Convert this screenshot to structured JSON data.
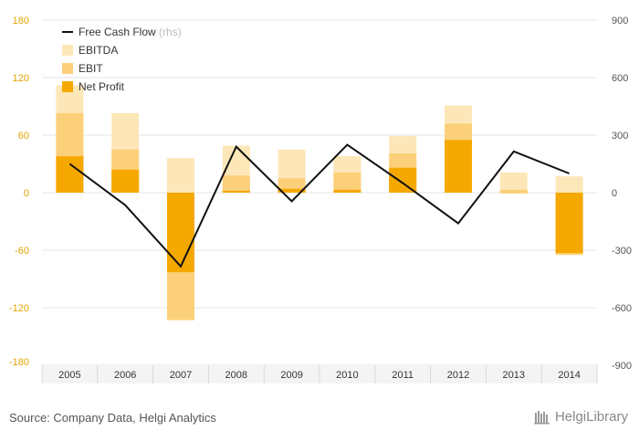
{
  "colors": {
    "ebitda": "#fde7b8",
    "ebit": "#fcd07b",
    "net_profit": "#f5a800",
    "fcf_line": "#111111",
    "left_axis_text": "#e2a400",
    "grid": "#e6e6e6"
  },
  "chart_data": {
    "type": "bar",
    "categories": [
      "2005",
      "2006",
      "2007",
      "2008",
      "2009",
      "2010",
      "2011",
      "2012",
      "2013",
      "2014"
    ],
    "series": [
      {
        "name": "EBITDA",
        "type": "bar",
        "axis": "left",
        "values": [
          112,
          83,
          36,
          49,
          45,
          38,
          59,
          91,
          21,
          17
        ]
      },
      {
        "name": "EBIT",
        "type": "bar",
        "axis": "left",
        "values": [
          83,
          45,
          -133,
          18,
          15,
          21,
          41,
          72,
          3,
          -65
        ]
      },
      {
        "name": "Net Profit",
        "type": "bar",
        "axis": "left",
        "values": [
          38,
          24,
          -83,
          2,
          4,
          3,
          26,
          55,
          0,
          -63
        ]
      },
      {
        "name": "Free Cash Flow",
        "name_suffix": "(rhs)",
        "type": "line",
        "axis": "right",
        "values": [
          150,
          -65,
          -385,
          240,
          -45,
          250,
          50,
          -160,
          215,
          100
        ]
      }
    ],
    "y_left": {
      "ticks": [
        "180",
        "120",
        "60",
        "0",
        "-60",
        "-120",
        "-180"
      ],
      "range": [
        -180,
        180
      ]
    },
    "y_right": {
      "ticks": [
        "900",
        "600",
        "300",
        "0",
        "-300",
        "-600",
        "-900"
      ],
      "range": [
        -900,
        900
      ]
    },
    "grid": true,
    "legend_placement": "top-left"
  },
  "legend": [
    {
      "label": "Free Cash Flow",
      "suffix": "(rhs)",
      "kind": "line"
    },
    {
      "label": "EBITDA",
      "suffix": "",
      "kind": "box",
      "color_key": "ebitda"
    },
    {
      "label": "EBIT",
      "suffix": "",
      "kind": "box",
      "color_key": "ebit"
    },
    {
      "label": "Net Profit",
      "suffix": "",
      "kind": "box",
      "color_key": "net_profit"
    }
  ],
  "footer": {
    "source": "Source: Company Data, Helgi Analytics",
    "brand": "HelgiLibrary",
    "brand_icon": "library-icon"
  }
}
